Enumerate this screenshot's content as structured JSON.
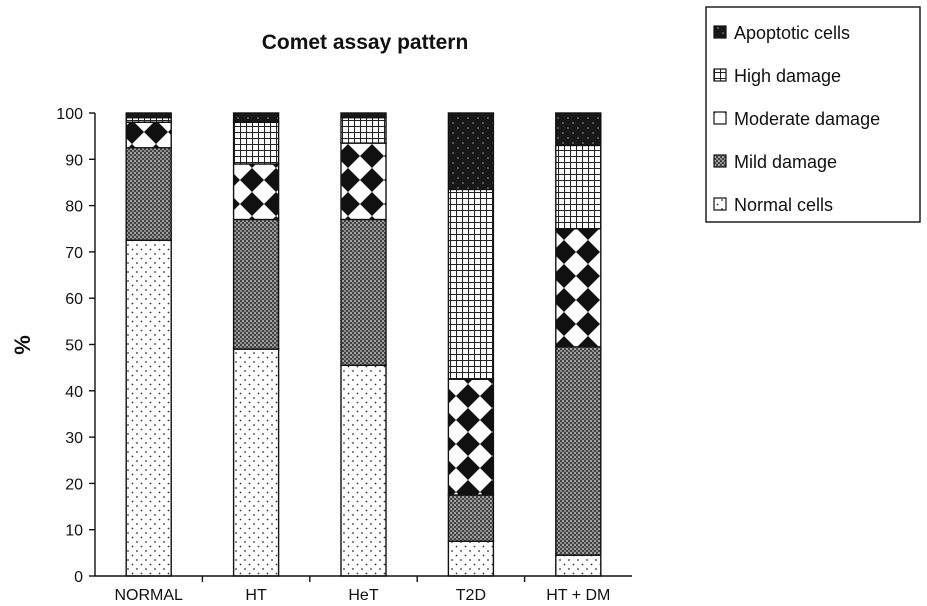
{
  "chart_data": {
    "type": "bar",
    "stacked": true,
    "title": "Comet assay pattern",
    "xlabel": "",
    "ylabel": "%",
    "ylim": [
      0,
      100
    ],
    "yticks": [
      0,
      10,
      20,
      30,
      40,
      50,
      60,
      70,
      80,
      90,
      100
    ],
    "categories": [
      "NORMAL",
      "HT",
      "HeT",
      "T2D",
      "HT + DM"
    ],
    "legend_position": "top-right",
    "grid": false,
    "series": [
      {
        "name": "Normal cells",
        "pattern": "dots",
        "values": [
          72.5,
          49.0,
          45.5,
          7.5,
          4.5
        ]
      },
      {
        "name": "Mild damage",
        "pattern": "crosshatch",
        "values": [
          20.0,
          28.0,
          31.5,
          10.0,
          45.0
        ]
      },
      {
        "name": "Moderate damage",
        "pattern": "diamonds",
        "values": [
          5.5,
          12.0,
          16.5,
          25.0,
          25.5
        ]
      },
      {
        "name": "High damage",
        "pattern": "grid",
        "values": [
          1.0,
          9.0,
          5.5,
          41.0,
          18.0
        ]
      },
      {
        "name": "Apoptotic cells",
        "pattern": "dark",
        "values": [
          1.0,
          2.0,
          1.0,
          16.5,
          7.0
        ]
      }
    ]
  }
}
